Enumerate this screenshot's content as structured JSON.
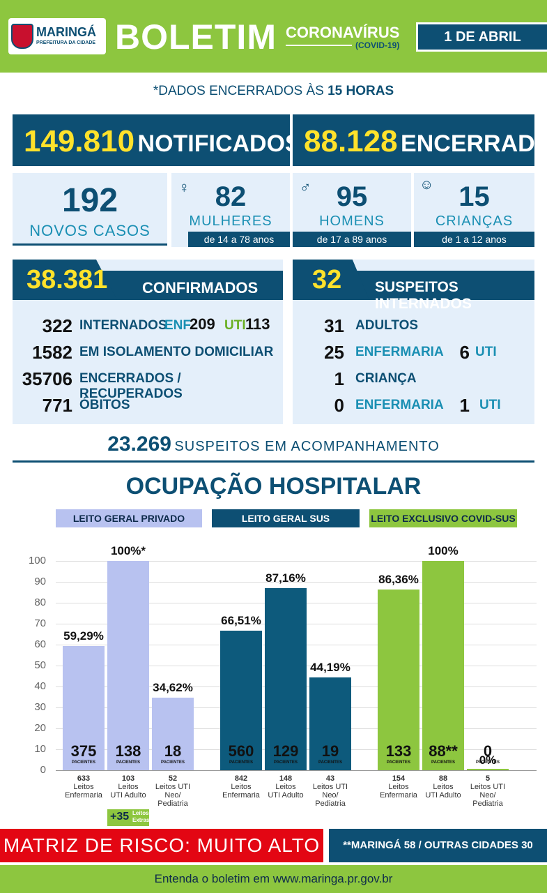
{
  "header": {
    "logo_name": "MARINGÁ",
    "logo_sub": "PREFEITURA DA CIDADE",
    "title": "BOLETIM",
    "subtitle": "CORONAVÍRUS",
    "subtitle2": "(COVID-19)",
    "date": "1 DE ABRIL"
  },
  "note": {
    "prefix": "*DADOS ENCERRADOS ÀS ",
    "hour": "15 HORAS"
  },
  "totals": {
    "notified_value": "149.810",
    "notified_label": "NOTIFICADOS",
    "closed_value": "88.128",
    "closed_label": "ENCERRADOS"
  },
  "cards": {
    "new_cases": {
      "value": "192",
      "label": "NOVOS CASOS"
    },
    "women": {
      "value": "82",
      "label": "MULHERES",
      "age": "de 14 a 78 anos"
    },
    "men": {
      "value": "95",
      "label": "HOMENS",
      "age": "de 17 a 89 anos"
    },
    "children": {
      "value": "15",
      "label": "CRIANÇAS",
      "age": "de 1 a 12 anos"
    }
  },
  "confirmed": {
    "value": "38.381",
    "label": "CONFIRMADOS",
    "rows": [
      {
        "n": "322",
        "label": "INTERNADOS"
      },
      {
        "n": "1582",
        "label": "EM ISOLAMENTO DOMICILIAR"
      },
      {
        "n": "35706",
        "label": "ENCERRADOS / RECUPERADOS"
      },
      {
        "n": "771",
        "label": "ÓBITOS"
      }
    ],
    "enf_label": "ENF.",
    "enf_value": "209",
    "uti_label": "UTI",
    "uti_value": "113"
  },
  "suspects": {
    "value": "32",
    "label": "SUSPEITOS INTERNADOS",
    "adults": {
      "n": "31",
      "label": "ADULTOS"
    },
    "adults_ward": {
      "n": "25",
      "label": "ENFERMARIA",
      "uti_n": "6",
      "uti_label": "UTI"
    },
    "children": {
      "n": "1",
      "label": "CRIANÇA"
    },
    "children_ward": {
      "n": "0",
      "label": "ENFERMARIA",
      "uti_n": "1",
      "uti_label": "UTI"
    }
  },
  "monitoring": {
    "value": "23.269",
    "label": "SUSPEITOS EM ACOMPANHAMENTO"
  },
  "occupancy_title": "OCUPAÇÃO HOSPITALAR",
  "chart_data": {
    "type": "bar",
    "title": "OCUPAÇÃO HOSPITALAR",
    "ylim": [
      0,
      100
    ],
    "yticks": [
      "0",
      "10",
      "20",
      "30",
      "40",
      "50",
      "60",
      "70",
      "80",
      "90",
      "100"
    ],
    "groups": [
      {
        "name": "LEITO GERAL PRIVADO",
        "color": "#b8c2f0",
        "headcolor": "#b8c2f0",
        "headtext": "#0d2a4a",
        "bars": [
          {
            "value": 59.29,
            "pct": "59,29%",
            "patients": "375",
            "beds": "633",
            "cat1": "Leitos",
            "cat2": "Enfermaria",
            "cat3": ""
          },
          {
            "value": 100,
            "pct": "100%*",
            "patients": "138",
            "beds": "103",
            "cat1": "Leitos",
            "cat2": "UTI Adulto",
            "cat3": ""
          },
          {
            "value": 34.62,
            "pct": "34,62%",
            "patients": "18",
            "beds": "52",
            "cat1": "Leitos UTI",
            "cat2": "Neo/",
            "cat3": "Pediatria"
          }
        ]
      },
      {
        "name": "LEITO GERAL SUS",
        "color": "#0d5a7c",
        "headcolor": "#0d4f73",
        "headtext": "#ffffff",
        "bars": [
          {
            "value": 66.51,
            "pct": "66,51%",
            "patients": "560",
            "beds": "842",
            "cat1": "Leitos",
            "cat2": "Enfermaria",
            "cat3": ""
          },
          {
            "value": 87.16,
            "pct": "87,16%",
            "patients": "129",
            "beds": "148",
            "cat1": "Leitos",
            "cat2": "UTI Adulto",
            "cat3": ""
          },
          {
            "value": 44.19,
            "pct": "44,19%",
            "patients": "19",
            "beds": "43",
            "cat1": "Leitos UTI",
            "cat2": "Neo/",
            "cat3": "Pediatria"
          }
        ]
      },
      {
        "name": "LEITO EXCLUSIVO COVID-SUS",
        "color": "#8dc63f",
        "headcolor": "#8dc63f",
        "headtext": "#0d2a4a",
        "bars": [
          {
            "value": 86.36,
            "pct": "86,36%",
            "patients": "133",
            "beds": "154",
            "cat1": "Leitos",
            "cat2": "Enfermaria",
            "cat3": ""
          },
          {
            "value": 100,
            "pct": "100%",
            "patients": "88**",
            "beds": "88",
            "cat1": "Leitos",
            "cat2": "UTI Adulto",
            "cat3": ""
          },
          {
            "value": 0,
            "pct": "0%",
            "patients": "0",
            "beds": "5",
            "cat1": "Leitos UTI",
            "cat2": "Neo/",
            "cat3": "Pediatria"
          }
        ]
      }
    ],
    "patients_label": "PACIENTES",
    "extra_beds": {
      "value": "+35",
      "label1": "Leitos",
      "label2": "Extras"
    }
  },
  "risk": {
    "text": "MATRIZ DE RISCO: MUITO ALTO"
  },
  "cities": {
    "text": "**MARINGÁ 58 / OUTRAS CIDADES 30"
  },
  "footer": {
    "text": "Entenda o boletim em www.maringa.pr.gov.br"
  }
}
